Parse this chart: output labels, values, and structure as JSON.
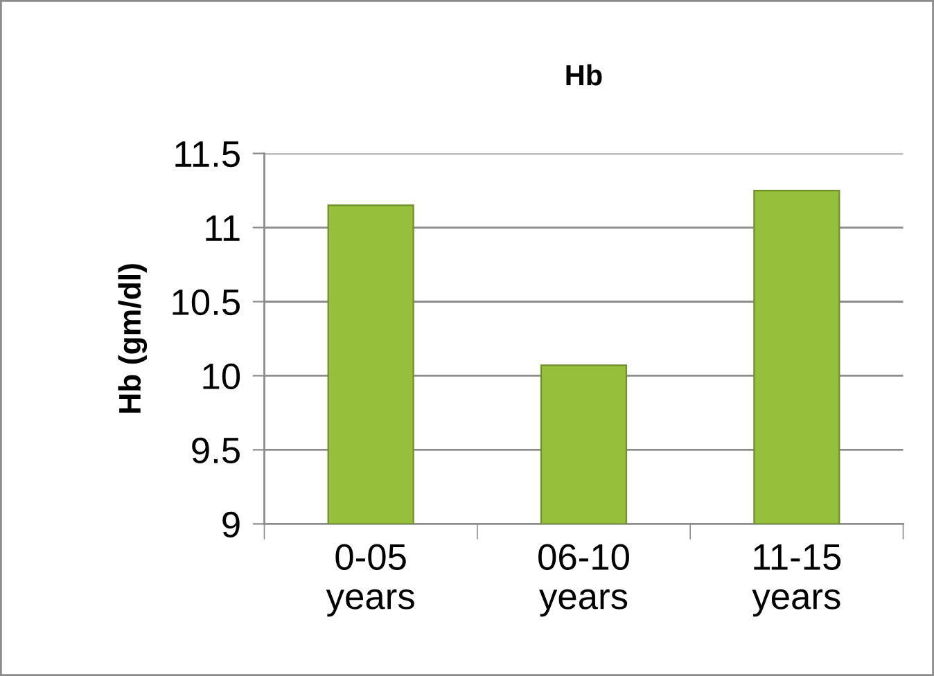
{
  "chart_data": {
    "type": "bar",
    "title": "Hb",
    "ylabel": "Hb (gm/dl)",
    "categories": [
      "0-05\nyears",
      "06-10\nyears",
      "11-15\nyears"
    ],
    "values": [
      11.15,
      10.07,
      11.25
    ],
    "color": "#96c03c",
    "ylim": [
      9,
      11.5
    ],
    "yticks": [
      9,
      9.5,
      10,
      10.5,
      11,
      11.5
    ],
    "grid": "y",
    "legend": false
  }
}
